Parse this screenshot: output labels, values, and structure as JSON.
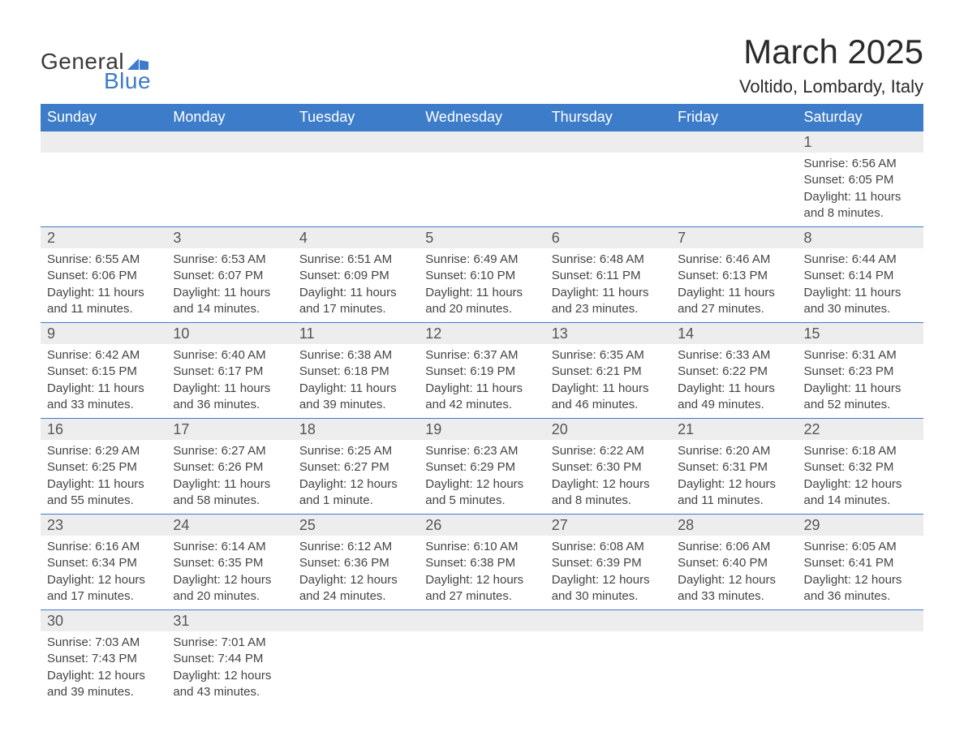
{
  "logo": {
    "general": "General",
    "blue": "Blue",
    "shape_color": "#3d7cc9"
  },
  "title": "March 2025",
  "location": "Voltido, Lombardy, Italy",
  "colors": {
    "header_bg": "#3d7cc9",
    "header_text": "#ffffff",
    "daynum_bg": "#ededed",
    "daynum_text": "#555555",
    "body_text": "#444444",
    "rule": "#3d7cc9",
    "page_bg": "#ffffff"
  },
  "fonts": {
    "title_size_pt": 42,
    "location_size_pt": 22,
    "header_size_pt": 18,
    "daynum_size_pt": 18,
    "detail_size_pt": 15,
    "logo_size_pt": 28
  },
  "weekdays": [
    "Sunday",
    "Monday",
    "Tuesday",
    "Wednesday",
    "Thursday",
    "Friday",
    "Saturday"
  ],
  "labels": {
    "sunrise": "Sunrise:",
    "sunset": "Sunset:",
    "daylight": "Daylight:"
  },
  "weeks": [
    [
      null,
      null,
      null,
      null,
      null,
      null,
      {
        "n": "1",
        "sr": "6:56 AM",
        "ss": "6:05 PM",
        "dl": "11 hours and 8 minutes."
      }
    ],
    [
      {
        "n": "2",
        "sr": "6:55 AM",
        "ss": "6:06 PM",
        "dl": "11 hours and 11 minutes."
      },
      {
        "n": "3",
        "sr": "6:53 AM",
        "ss": "6:07 PM",
        "dl": "11 hours and 14 minutes."
      },
      {
        "n": "4",
        "sr": "6:51 AM",
        "ss": "6:09 PM",
        "dl": "11 hours and 17 minutes."
      },
      {
        "n": "5",
        "sr": "6:49 AM",
        "ss": "6:10 PM",
        "dl": "11 hours and 20 minutes."
      },
      {
        "n": "6",
        "sr": "6:48 AM",
        "ss": "6:11 PM",
        "dl": "11 hours and 23 minutes."
      },
      {
        "n": "7",
        "sr": "6:46 AM",
        "ss": "6:13 PM",
        "dl": "11 hours and 27 minutes."
      },
      {
        "n": "8",
        "sr": "6:44 AM",
        "ss": "6:14 PM",
        "dl": "11 hours and 30 minutes."
      }
    ],
    [
      {
        "n": "9",
        "sr": "6:42 AM",
        "ss": "6:15 PM",
        "dl": "11 hours and 33 minutes."
      },
      {
        "n": "10",
        "sr": "6:40 AM",
        "ss": "6:17 PM",
        "dl": "11 hours and 36 minutes."
      },
      {
        "n": "11",
        "sr": "6:38 AM",
        "ss": "6:18 PM",
        "dl": "11 hours and 39 minutes."
      },
      {
        "n": "12",
        "sr": "6:37 AM",
        "ss": "6:19 PM",
        "dl": "11 hours and 42 minutes."
      },
      {
        "n": "13",
        "sr": "6:35 AM",
        "ss": "6:21 PM",
        "dl": "11 hours and 46 minutes."
      },
      {
        "n": "14",
        "sr": "6:33 AM",
        "ss": "6:22 PM",
        "dl": "11 hours and 49 minutes."
      },
      {
        "n": "15",
        "sr": "6:31 AM",
        "ss": "6:23 PM",
        "dl": "11 hours and 52 minutes."
      }
    ],
    [
      {
        "n": "16",
        "sr": "6:29 AM",
        "ss": "6:25 PM",
        "dl": "11 hours and 55 minutes."
      },
      {
        "n": "17",
        "sr": "6:27 AM",
        "ss": "6:26 PM",
        "dl": "11 hours and 58 minutes."
      },
      {
        "n": "18",
        "sr": "6:25 AM",
        "ss": "6:27 PM",
        "dl": "12 hours and 1 minute."
      },
      {
        "n": "19",
        "sr": "6:23 AM",
        "ss": "6:29 PM",
        "dl": "12 hours and 5 minutes."
      },
      {
        "n": "20",
        "sr": "6:22 AM",
        "ss": "6:30 PM",
        "dl": "12 hours and 8 minutes."
      },
      {
        "n": "21",
        "sr": "6:20 AM",
        "ss": "6:31 PM",
        "dl": "12 hours and 11 minutes."
      },
      {
        "n": "22",
        "sr": "6:18 AM",
        "ss": "6:32 PM",
        "dl": "12 hours and 14 minutes."
      }
    ],
    [
      {
        "n": "23",
        "sr": "6:16 AM",
        "ss": "6:34 PM",
        "dl": "12 hours and 17 minutes."
      },
      {
        "n": "24",
        "sr": "6:14 AM",
        "ss": "6:35 PM",
        "dl": "12 hours and 20 minutes."
      },
      {
        "n": "25",
        "sr": "6:12 AM",
        "ss": "6:36 PM",
        "dl": "12 hours and 24 minutes."
      },
      {
        "n": "26",
        "sr": "6:10 AM",
        "ss": "6:38 PM",
        "dl": "12 hours and 27 minutes."
      },
      {
        "n": "27",
        "sr": "6:08 AM",
        "ss": "6:39 PM",
        "dl": "12 hours and 30 minutes."
      },
      {
        "n": "28",
        "sr": "6:06 AM",
        "ss": "6:40 PM",
        "dl": "12 hours and 33 minutes."
      },
      {
        "n": "29",
        "sr": "6:05 AM",
        "ss": "6:41 PM",
        "dl": "12 hours and 36 minutes."
      }
    ],
    [
      {
        "n": "30",
        "sr": "7:03 AM",
        "ss": "7:43 PM",
        "dl": "12 hours and 39 minutes."
      },
      {
        "n": "31",
        "sr": "7:01 AM",
        "ss": "7:44 PM",
        "dl": "12 hours and 43 minutes."
      },
      null,
      null,
      null,
      null,
      null
    ]
  ]
}
